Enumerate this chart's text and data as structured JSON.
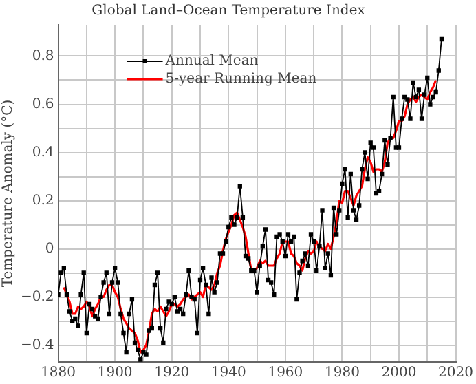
{
  "chart_data": {
    "type": "line",
    "title": "Global Land–Ocean Temperature Index",
    "ylabel": "Temperature Anomaly (°C)",
    "xlim": [
      1880,
      2020
    ],
    "xticks": [
      1880,
      {
        "value": 1890,
        "label": null
      },
      1900,
      {
        "value": 1910,
        "label": null
      },
      1920,
      {
        "value": 1930,
        "label": null
      },
      1940,
      {
        "value": 1950,
        "label": null
      },
      1960,
      {
        "value": 1970,
        "label": null
      },
      1980,
      {
        "value": 1990,
        "label": null
      },
      2000,
      {
        "value": 2010,
        "label": null
      },
      2020
    ],
    "ylim": [
      -0.47,
      0.93
    ],
    "yticks": [
      {
        "value": -0.4,
        "label": "−0.4"
      },
      {
        "value": -0.3,
        "label": null
      },
      {
        "value": -0.2,
        "label": "−0.2"
      },
      {
        "value": -0.1,
        "label": null
      },
      0,
      {
        "value": 0.1,
        "label": null
      },
      0.2,
      {
        "value": 0.3,
        "label": null
      },
      0.4,
      {
        "value": 0.5,
        "label": null
      },
      0.6,
      {
        "value": 0.7,
        "label": null
      },
      0.8
    ],
    "grid": true,
    "legend": "top left",
    "series": [
      {
        "name": "Annual Mean",
        "color": "#000000",
        "marker": "square",
        "x": [
          1880,
          1881,
          1882,
          1883,
          1884,
          1885,
          1886,
          1887,
          1888,
          1889,
          1890,
          1891,
          1892,
          1893,
          1894,
          1895,
          1896,
          1897,
          1898,
          1899,
          1900,
          1901,
          1902,
          1903,
          1904,
          1905,
          1906,
          1907,
          1908,
          1909,
          1910,
          1911,
          1912,
          1913,
          1914,
          1915,
          1916,
          1917,
          1918,
          1919,
          1920,
          1921,
          1922,
          1923,
          1924,
          1925,
          1926,
          1927,
          1928,
          1929,
          1930,
          1931,
          1932,
          1933,
          1934,
          1935,
          1936,
          1937,
          1938,
          1939,
          1940,
          1941,
          1942,
          1943,
          1944,
          1945,
          1946,
          1947,
          1948,
          1949,
          1950,
          1951,
          1952,
          1953,
          1954,
          1955,
          1956,
          1957,
          1958,
          1959,
          1960,
          1961,
          1962,
          1963,
          1964,
          1965,
          1966,
          1967,
          1968,
          1969,
          1970,
          1971,
          1972,
          1973,
          1974,
          1975,
          1976,
          1977,
          1978,
          1979,
          1980,
          1981,
          1982,
          1983,
          1984,
          1985,
          1986,
          1987,
          1988,
          1989,
          1990,
          1991,
          1992,
          1993,
          1994,
          1995,
          1996,
          1997,
          1998,
          1999,
          2000,
          2001,
          2002,
          2003,
          2004,
          2005,
          2006,
          2007,
          2008,
          2009,
          2010,
          2011,
          2012,
          2013,
          2014,
          2015
        ],
        "values": [
          -0.19,
          -0.1,
          -0.08,
          -0.19,
          -0.26,
          -0.3,
          -0.29,
          -0.32,
          -0.19,
          -0.1,
          -0.35,
          -0.23,
          -0.25,
          -0.28,
          -0.29,
          -0.2,
          -0.14,
          -0.1,
          -0.27,
          -0.14,
          -0.08,
          -0.14,
          -0.27,
          -0.35,
          -0.43,
          -0.27,
          -0.21,
          -0.39,
          -0.42,
          -0.46,
          -0.43,
          -0.44,
          -0.34,
          -0.33,
          -0.15,
          -0.1,
          -0.33,
          -0.39,
          -0.25,
          -0.22,
          -0.23,
          -0.2,
          -0.26,
          -0.25,
          -0.27,
          -0.19,
          -0.09,
          -0.2,
          -0.21,
          -0.35,
          -0.13,
          -0.08,
          -0.15,
          -0.27,
          -0.12,
          -0.18,
          -0.14,
          -0.02,
          -0.02,
          0.03,
          0.09,
          0.13,
          0.1,
          0.13,
          0.26,
          0.13,
          -0.03,
          -0.04,
          -0.09,
          -0.09,
          -0.18,
          -0.07,
          0.01,
          0.08,
          -0.13,
          -0.14,
          -0.19,
          0.05,
          0.06,
          0.03,
          -0.03,
          0.06,
          0.03,
          0.05,
          -0.21,
          -0.1,
          -0.05,
          -0.02,
          -0.07,
          0.06,
          0.03,
          -0.09,
          0.01,
          0.16,
          -0.08,
          -0.02,
          -0.11,
          0.17,
          0.06,
          0.16,
          0.27,
          0.33,
          0.13,
          0.31,
          0.16,
          0.12,
          0.18,
          0.33,
          0.4,
          0.29,
          0.44,
          0.42,
          0.23,
          0.24,
          0.31,
          0.45,
          0.35,
          0.46,
          0.63,
          0.42,
          0.42,
          0.54,
          0.63,
          0.62,
          0.54,
          0.69,
          0.63,
          0.66,
          0.54,
          0.64,
          0.71,
          0.6,
          0.63,
          0.65,
          0.74,
          0.87
        ]
      },
      {
        "name": "5-year Running Mean",
        "color": "#ff0000",
        "marker": "none",
        "x": [
          1882,
          1883,
          1884,
          1885,
          1886,
          1887,
          1888,
          1889,
          1890,
          1891,
          1892,
          1893,
          1894,
          1895,
          1896,
          1897,
          1898,
          1899,
          1900,
          1901,
          1902,
          1903,
          1904,
          1905,
          1906,
          1907,
          1908,
          1909,
          1910,
          1911,
          1912,
          1913,
          1914,
          1915,
          1916,
          1917,
          1918,
          1919,
          1920,
          1921,
          1922,
          1923,
          1924,
          1925,
          1926,
          1927,
          1928,
          1929,
          1930,
          1931,
          1932,
          1933,
          1934,
          1935,
          1936,
          1937,
          1938,
          1939,
          1940,
          1941,
          1942,
          1943,
          1944,
          1945,
          1946,
          1947,
          1948,
          1949,
          1950,
          1951,
          1952,
          1953,
          1954,
          1955,
          1956,
          1957,
          1958,
          1959,
          1960,
          1961,
          1962,
          1963,
          1964,
          1965,
          1966,
          1967,
          1968,
          1969,
          1970,
          1971,
          1972,
          1973,
          1974,
          1975,
          1976,
          1977,
          1978,
          1979,
          1980,
          1981,
          1982,
          1983,
          1984,
          1985,
          1986,
          1987,
          1988,
          1989,
          1990,
          1991,
          1992,
          1993,
          1994,
          1995,
          1996,
          1997,
          1998,
          1999,
          2000,
          2001,
          2002,
          2003,
          2004,
          2005,
          2006,
          2007,
          2008,
          2009,
          2010,
          2011,
          2012,
          2013
        ],
        "values": [
          -0.16,
          -0.19,
          -0.22,
          -0.27,
          -0.27,
          -0.24,
          -0.25,
          -0.24,
          -0.22,
          -0.24,
          -0.28,
          -0.25,
          -0.23,
          -0.2,
          -0.2,
          -0.17,
          -0.15,
          -0.15,
          -0.18,
          -0.2,
          -0.25,
          -0.29,
          -0.31,
          -0.33,
          -0.34,
          -0.35,
          -0.38,
          -0.43,
          -0.42,
          -0.4,
          -0.34,
          -0.27,
          -0.25,
          -0.26,
          -0.24,
          -0.26,
          -0.28,
          -0.26,
          -0.23,
          -0.23,
          -0.24,
          -0.23,
          -0.21,
          -0.2,
          -0.19,
          -0.21,
          -0.2,
          -0.19,
          -0.18,
          -0.2,
          -0.15,
          -0.16,
          -0.17,
          -0.15,
          -0.1,
          -0.07,
          -0.01,
          0.04,
          0.07,
          0.1,
          0.14,
          0.15,
          0.12,
          0.09,
          0.05,
          -0.02,
          -0.09,
          -0.09,
          -0.08,
          -0.05,
          -0.06,
          -0.05,
          -0.07,
          -0.07,
          -0.07,
          -0.04,
          -0.02,
          0.03,
          0.03,
          0.03,
          -0.02,
          -0.03,
          -0.06,
          -0.07,
          -0.09,
          -0.04,
          -0.01,
          -0.02,
          -0.01,
          0.03,
          0.01,
          0.0,
          -0.01,
          0.02,
          0.0,
          0.05,
          0.11,
          0.2,
          0.19,
          0.24,
          0.24,
          0.21,
          0.18,
          0.22,
          0.24,
          0.26,
          0.33,
          0.38,
          0.36,
          0.32,
          0.33,
          0.33,
          0.32,
          0.36,
          0.44,
          0.46,
          0.46,
          0.49,
          0.53,
          0.53,
          0.55,
          0.6,
          0.62,
          0.63,
          0.61,
          0.63,
          0.64,
          0.63,
          0.62,
          0.65,
          0.67,
          0.7
        ]
      }
    ]
  }
}
